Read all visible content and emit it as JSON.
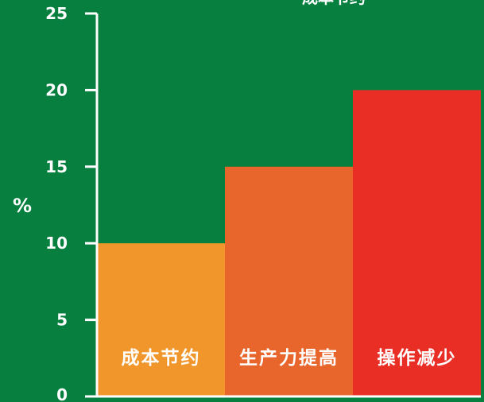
{
  "colors": {
    "background": "#067f3f",
    "axis": "#ffffff",
    "bars": [
      "#f0962b",
      "#e8652c",
      "#e92f25"
    ]
  },
  "chart_data": {
    "type": "bar",
    "title": "成本节约",
    "categories": [
      "成本节约",
      "生产力提高",
      "操作减少"
    ],
    "values": [
      10,
      15,
      20
    ],
    "xlabel": "",
    "ylabel": "%",
    "ylim": [
      0,
      25
    ],
    "yticks": [
      0,
      5,
      10,
      15,
      20,
      25
    ],
    "grid": false,
    "legend": "none",
    "labels_inside_bars": true
  }
}
